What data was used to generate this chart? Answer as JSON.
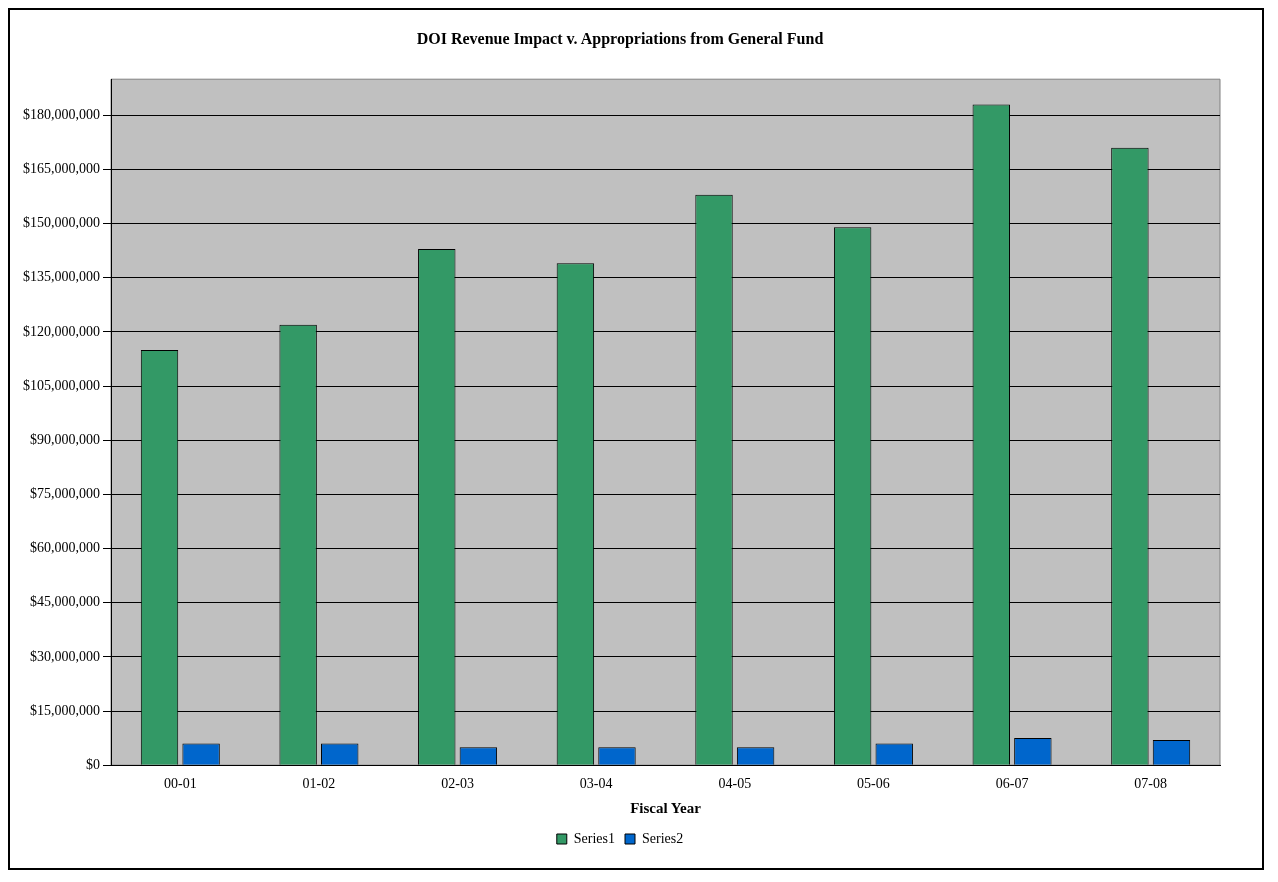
{
  "chart_data": {
    "type": "bar",
    "title": "DOI Revenue Impact v. Appropriations from General Fund",
    "xlabel": "Fiscal Year",
    "categories": [
      "00-01",
      "01-02",
      "02-03",
      "03-04",
      "04-05",
      "05-06",
      "06-07",
      "07-08"
    ],
    "series": [
      {
        "name": "Series1",
        "color": "#339966",
        "values": [
          115000000,
          122000000,
          143000000,
          139000000,
          158000000,
          149000000,
          183000000,
          171000000
        ]
      },
      {
        "name": "Series2",
        "color": "#0066cc",
        "values": [
          6000000,
          6000000,
          5000000,
          5000000,
          5000000,
          6000000,
          7500000,
          7000000
        ]
      }
    ],
    "ylim": [
      0,
      190000000
    ],
    "yticks": [
      {
        "value": 0,
        "label": "$0"
      },
      {
        "value": 15000000,
        "label": "$15,000,000"
      },
      {
        "value": 30000000,
        "label": "$30,000,000"
      },
      {
        "value": 45000000,
        "label": "$45,000,000"
      },
      {
        "value": 60000000,
        "label": "$60,000,000"
      },
      {
        "value": 75000000,
        "label": "$75,000,000"
      },
      {
        "value": 90000000,
        "label": "$90,000,000"
      },
      {
        "value": 105000000,
        "label": "$105,000,000"
      },
      {
        "value": 120000000,
        "label": "$120,000,000"
      },
      {
        "value": 135000000,
        "label": "$135,000,000"
      },
      {
        "value": 150000000,
        "label": "$150,000,000"
      },
      {
        "value": 165000000,
        "label": "$165,000,000"
      },
      {
        "value": 180000000,
        "label": "$180,000,000"
      }
    ],
    "grid": "y",
    "legend": "bottom"
  }
}
